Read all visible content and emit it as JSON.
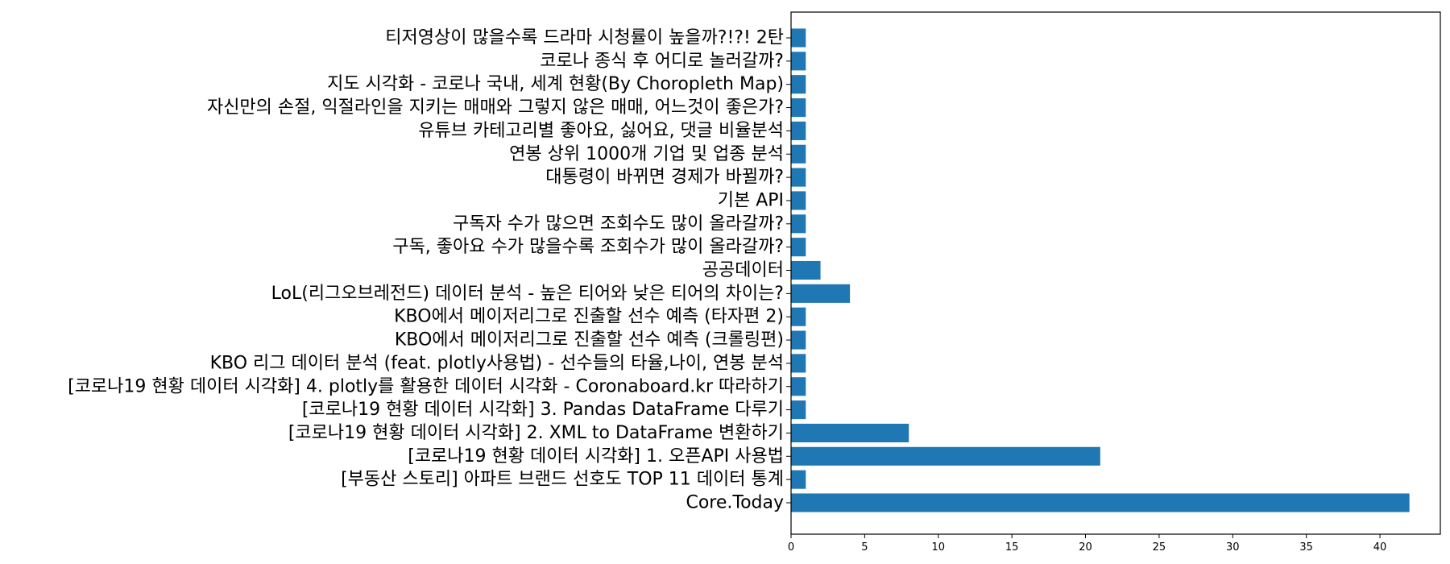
{
  "chart_data": {
    "type": "bar",
    "orientation": "horizontal",
    "title": "",
    "xlabel": "",
    "ylabel": "",
    "categories": [
      "Core.Today",
      "[부동산 스토리] 아파트 브랜드 선호도 TOP 11 데이터 통계",
      "[코로나19 현황 데이터 시각화] 1. 오픈API 사용법",
      "[코로나19 현황 데이터 시각화] 2. XML to DataFrame 변환하기",
      "[코로나19 현황 데이터 시각화] 3. Pandas DataFrame 다루기",
      "[코로나19 현황 데이터 시각화] 4. plotly를 활용한 데이터 시각화 - Coronaboard.kr 따라하기",
      "KBO 리그 데이터 분석 (feat. plotly사용법) - 선수들의 타율,나이, 연봉 분석",
      "KBO에서 메이저리그로 진출할 선수 예측 (크롤링편)",
      "KBO에서 메이저리그로 진출할 선수 예측 (타자편 2)",
      "LoL(리그오브레전드) 데이터 분석 - 높은 티어와 낮은 티어의 차이는?",
      "공공데이터",
      "구독, 좋아요 수가 많을수록 조회수가 많이 올라갈까?",
      "구독자 수가 많으면 조회수도 많이 올라갈까?",
      "기본 API",
      "대통령이 바뀌면 경제가 바뀔까?",
      "연봉 상위 1000개 기업 및 업종 분석",
      "유튜브 카테고리별 좋아요, 싫어요, 댓글 비율분석",
      "자신만의 손절, 익절라인을 지키는 매매와 그렇지 않은 매매, 어느것이 좋은가?",
      "지도 시각화 - 코로나 국내, 세계 현황(By Choropleth Map)",
      "코로나 종식 후 어디로 놀러갈까?",
      "티저영상이 많을수록 드라마 시청률이 높을까?!?! 2탄"
    ],
    "values": [
      42,
      1,
      21,
      8,
      1,
      1,
      1,
      1,
      1,
      4,
      2,
      1,
      1,
      1,
      1,
      1,
      1,
      1,
      1,
      1,
      1
    ],
    "xlim": [
      0,
      44.1
    ],
    "xticks": [
      0,
      5,
      10,
      15,
      20,
      25,
      30,
      35,
      40
    ],
    "grid": false,
    "bar_color": "#1f77b4"
  }
}
